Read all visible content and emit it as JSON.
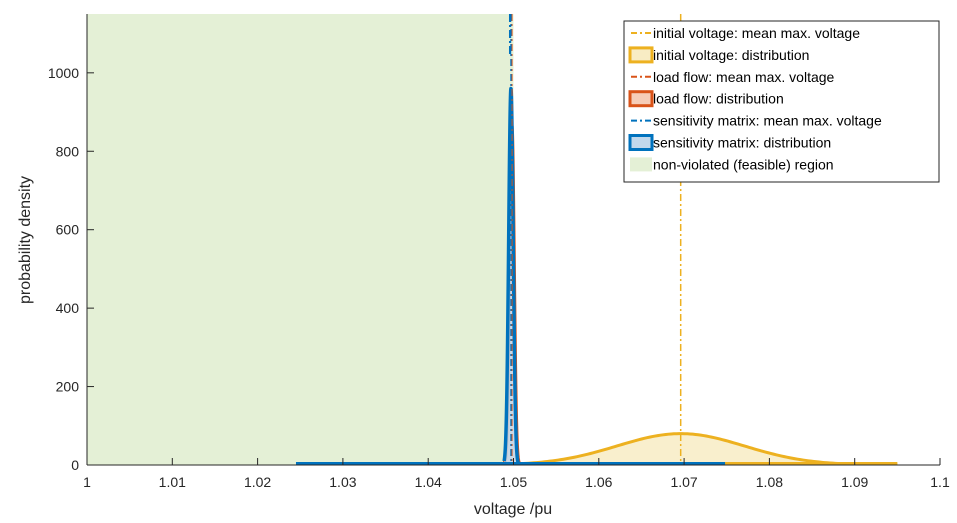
{
  "chart_data": {
    "type": "area",
    "xlabel": "voltage /pu",
    "ylabel": "probability density",
    "xlim": [
      1,
      1.1
    ],
    "ylim": [
      0,
      1150
    ],
    "xticks": [
      1,
      1.01,
      1.02,
      1.03,
      1.04,
      1.05,
      1.06,
      1.07,
      1.08,
      1.09,
      1.1
    ],
    "xtick_labels": [
      "1",
      "1.01",
      "1.02",
      "1.03",
      "1.04",
      "1.05",
      "1.06",
      "1.07",
      "1.08",
      "1.09",
      "1.1"
    ],
    "yticks": [
      0,
      200,
      400,
      600,
      800,
      1000
    ],
    "ytick_labels": [
      "0",
      "200",
      "400",
      "600",
      "800",
      "1000"
    ],
    "grid": false,
    "legend_position": "top-right",
    "feasible_region": {
      "x_from": 1,
      "x_to": 1.05,
      "color": "#e4f0d6"
    },
    "series": [
      {
        "name": "initial voltage: mean max. voltage",
        "kind": "mean-line",
        "x": 1.0696,
        "color": "#EDB120"
      },
      {
        "name": "initial voltage: distribution",
        "kind": "distribution",
        "mean": 1.0696,
        "peak": 80,
        "support": [
          1.0445,
          1.095
        ],
        "baseline_extent": [
          1.0445,
          1.095
        ],
        "color": "#EDB120",
        "fill": "#f8ecc4"
      },
      {
        "name": "load flow: mean max. voltage",
        "kind": "mean-line",
        "x": 1.0498,
        "color": "#D95319"
      },
      {
        "name": "load flow: distribution",
        "kind": "distribution",
        "mean": 1.0498,
        "peak": 865,
        "support": [
          1.0489,
          1.0507
        ],
        "baseline_extent": [
          1.0455,
          1.0545
        ],
        "color": "#D95319",
        "fill": "#f6cdb8"
      },
      {
        "name": "sensitivity matrix: mean max. voltage",
        "kind": "mean-line",
        "x": 1.0497,
        "color": "#0072BD",
        "top_marker_x": 1.0496
      },
      {
        "name": "sensitivity matrix: distribution",
        "kind": "distribution",
        "mean": 1.0497,
        "peak": 960,
        "support": [
          1.0489,
          1.0506
        ],
        "baseline_extent": [
          1.0245,
          1.0748
        ],
        "color": "#0072BD",
        "fill": "#c1d8ec"
      },
      {
        "name": "non-violated (feasible) region",
        "kind": "region",
        "color": "#e4f0d6"
      }
    ]
  }
}
